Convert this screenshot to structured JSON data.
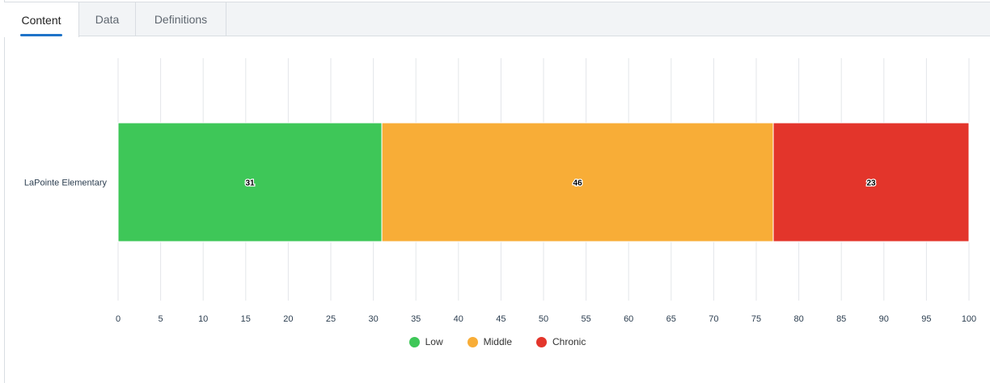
{
  "tabs": [
    {
      "label": "Content",
      "active": true
    },
    {
      "label": "Data",
      "active": false
    },
    {
      "label": "Definitions",
      "active": false
    }
  ],
  "chart_data": {
    "type": "bar",
    "orientation": "horizontal",
    "stacked": true,
    "categories": [
      "LaPointe Elementary"
    ],
    "series": [
      {
        "name": "Low",
        "values": [
          31
        ],
        "color": "#3ec758"
      },
      {
        "name": "Middle",
        "values": [
          46
        ],
        "color": "#f8ad37"
      },
      {
        "name": "Chronic",
        "values": [
          23
        ],
        "color": "#e3352b"
      }
    ],
    "xlim": [
      0,
      100
    ],
    "xticks": [
      0,
      5,
      10,
      15,
      20,
      25,
      30,
      35,
      40,
      45,
      50,
      55,
      60,
      65,
      70,
      75,
      80,
      85,
      90,
      95,
      100
    ],
    "grid": true,
    "legend_position": "bottom-center"
  }
}
